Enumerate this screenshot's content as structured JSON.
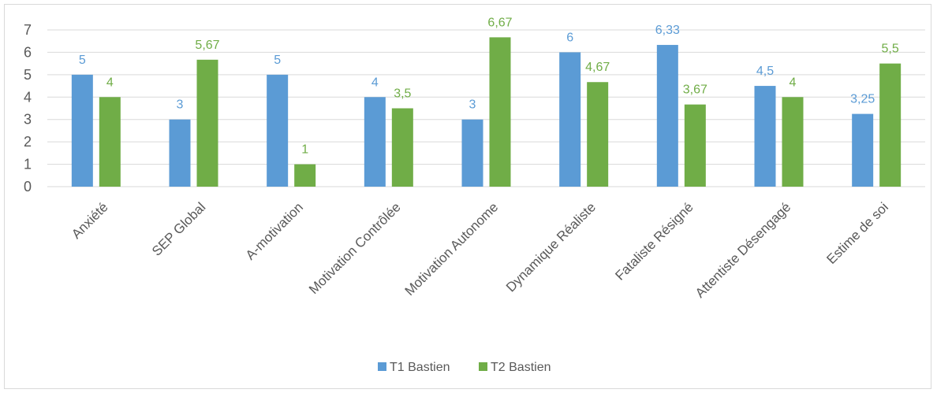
{
  "chart_data": {
    "type": "bar",
    "categories": [
      "Anxiété",
      "SEP Global",
      "A-motivation",
      "Motivation Contrôlée",
      "Motivation Autonome",
      "Dynamique Réaliste",
      "Fataliste Résigné",
      "Attentiste Désengagé",
      "Estime de soi"
    ],
    "series": [
      {
        "name": "T1 Bastien",
        "color": "#5b9bd5",
        "values": [
          5,
          3,
          5,
          4,
          3,
          6,
          6.33,
          4.5,
          3.25
        ],
        "labels": [
          "5",
          "3",
          "5",
          "4",
          "3",
          "6",
          "6,33",
          "4,5",
          "3,25"
        ]
      },
      {
        "name": "T2 Bastien",
        "color": "#70ad47",
        "values": [
          4,
          5.67,
          1,
          3.5,
          6.67,
          4.67,
          3.67,
          4,
          5.5
        ],
        "labels": [
          "4",
          "5,67",
          "1",
          "3,5",
          "6,67",
          "4,67",
          "3,67",
          "4",
          "5,5"
        ]
      }
    ],
    "ylim": [
      0,
      7
    ],
    "yticks": [
      "0",
      "1",
      "2",
      "3",
      "4",
      "5",
      "6",
      "7"
    ],
    "grid": true,
    "legend": "bottom",
    "title": "",
    "xlabel": "",
    "ylabel": ""
  }
}
